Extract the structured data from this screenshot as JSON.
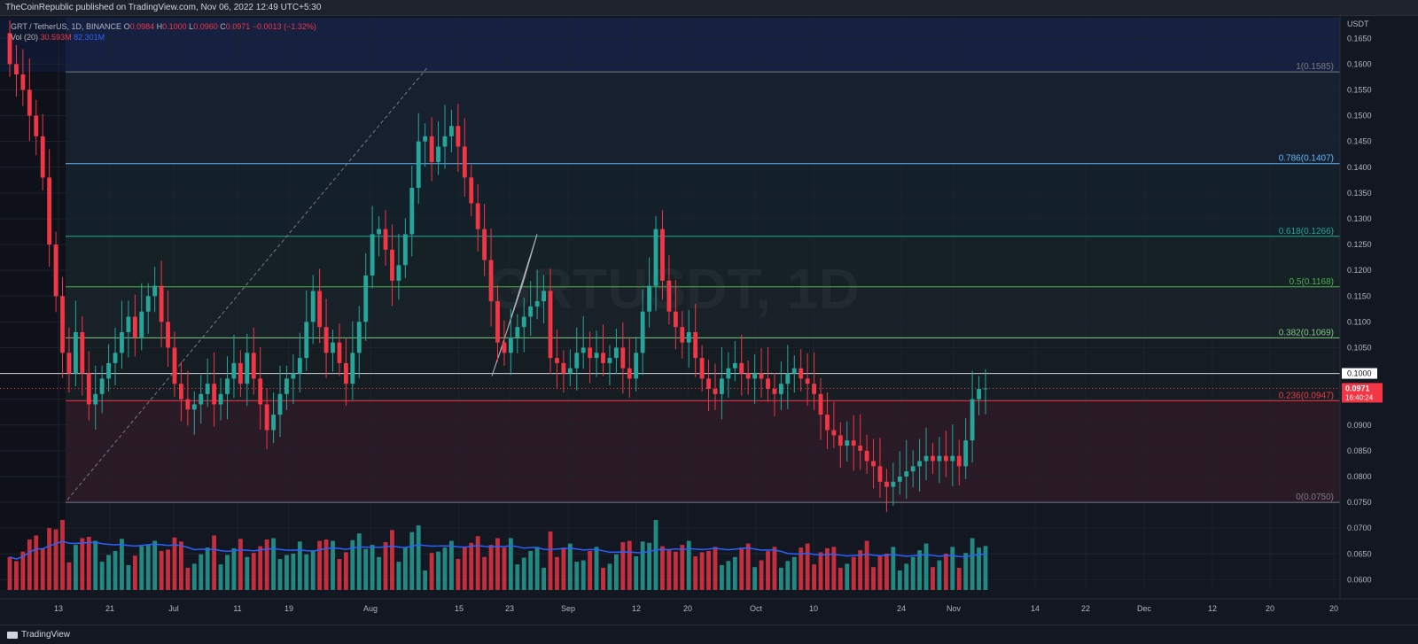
{
  "header": {
    "published_by": "TheCoinRepublic published on TradingView.com, Nov 06, 2022 12:49 UTC+5:30"
  },
  "legend": {
    "symbol": "GRT / TetherUS, 1D, BINANCE",
    "open_label": "O",
    "open": "0.0984",
    "high_label": "H",
    "high": "0.1000",
    "low_label": "L",
    "low": "0.0960",
    "close_label": "C",
    "close": "0.0971",
    "change": "−0.0013 (−1.32%)",
    "vol_label": "Vol (20)",
    "vol_value": "30.593M",
    "vol_ma": "82.301M"
  },
  "watermark": "GRTUSDT, 1D",
  "footer": {
    "logo_text": "TradingView"
  },
  "price_axis": {
    "currency": "USDT",
    "current_price": "0.0971",
    "countdown": "16:40:24",
    "level_label": "0.1000"
  },
  "colors": {
    "up": "#26a69a",
    "down": "#f23645",
    "background": "#131722",
    "ma": "#2962ff"
  },
  "chart_data": {
    "type": "candlestick",
    "title": "GRTUSDT, 1D",
    "ylabel": "USDT",
    "ylim": [
      0.058,
      0.169
    ],
    "grid": true,
    "y_ticks": [
      "0.0600",
      "0.0650",
      "0.0700",
      "0.0750",
      "0.0800",
      "0.0850",
      "0.0900",
      "0.0950",
      "0.1000",
      "0.1050",
      "0.1100",
      "0.1150",
      "0.1200",
      "0.1250",
      "0.1300",
      "0.1350",
      "0.1400",
      "0.1450",
      "0.1500",
      "0.1550",
      "0.1600",
      "0.1650"
    ],
    "x_ticks": [
      "13",
      "21",
      "Jul",
      "11",
      "19",
      "Aug",
      "15",
      "23",
      "Sep",
      "12",
      "20",
      "Oct",
      "10",
      "24",
      "Nov",
      "14",
      "22",
      "Dec",
      "12",
      "20",
      "20"
    ],
    "fib_levels": [
      {
        "ratio": "1",
        "price": 0.1585,
        "label": "1(0.1585)",
        "color": "#787b86"
      },
      {
        "ratio": "0.786",
        "price": 0.1407,
        "label": "0.786(0.1407)",
        "color": "#64b5f6"
      },
      {
        "ratio": "0.618",
        "price": 0.1266,
        "label": "0.618(0.1266)",
        "color": "#26a69a"
      },
      {
        "ratio": "0.5",
        "price": 0.1168,
        "label": "0.5(0.1168)",
        "color": "#4caf50"
      },
      {
        "ratio": "0.382",
        "price": 0.1069,
        "label": "0.382(0.1069)",
        "color": "#81c784"
      },
      {
        "ratio": "0.236",
        "price": 0.0947,
        "label": "0.236(0.0947)",
        "color": "#f23645"
      },
      {
        "ratio": "0",
        "price": 0.075,
        "label": "0(0.0750)",
        "color": "#787b86"
      }
    ],
    "horizontal_level": 0.1,
    "current_price": 0.0971,
    "closes": [
      0.16,
      0.158,
      0.155,
      0.15,
      0.146,
      0.138,
      0.125,
      0.115,
      0.104,
      0.1,
      0.108,
      0.1,
      0.094,
      0.096,
      0.099,
      0.102,
      0.104,
      0.108,
      0.111,
      0.107,
      0.112,
      0.115,
      0.117,
      0.11,
      0.105,
      0.098,
      0.095,
      0.093,
      0.094,
      0.096,
      0.098,
      0.094,
      0.096,
      0.099,
      0.102,
      0.098,
      0.104,
      0.099,
      0.094,
      0.089,
      0.092,
      0.096,
      0.099,
      0.1,
      0.103,
      0.11,
      0.116,
      0.109,
      0.104,
      0.106,
      0.102,
      0.098,
      0.104,
      0.11,
      0.119,
      0.127,
      0.128,
      0.124,
      0.118,
      0.121,
      0.127,
      0.136,
      0.145,
      0.146,
      0.141,
      0.144,
      0.146,
      0.148,
      0.144,
      0.138,
      0.133,
      0.128,
      0.122,
      0.114,
      0.106,
      0.104,
      0.107,
      0.109,
      0.111,
      0.113,
      0.114,
      0.116,
      0.103,
      0.102,
      0.1,
      0.101,
      0.104,
      0.105,
      0.103,
      0.104,
      0.102,
      0.103,
      0.105,
      0.101,
      0.099,
      0.104,
      0.112,
      0.117,
      0.128,
      0.118,
      0.112,
      0.109,
      0.106,
      0.108,
      0.103,
      0.099,
      0.097,
      0.096,
      0.099,
      0.101,
      0.102,
      0.1,
      0.099,
      0.1,
      0.099,
      0.097,
      0.096,
      0.098,
      0.1,
      0.101,
      0.099,
      0.098,
      0.096,
      0.092,
      0.089,
      0.088,
      0.086,
      0.087,
      0.086,
      0.085,
      0.083,
      0.082,
      0.079,
      0.078,
      0.079,
      0.08,
      0.081,
      0.082,
      0.083,
      0.084,
      0.083,
      0.084,
      0.083,
      0.084,
      0.082,
      0.087,
      0.095,
      0.097,
      0.0971
    ],
    "volume_ma_series_name": "Vol (20)"
  }
}
